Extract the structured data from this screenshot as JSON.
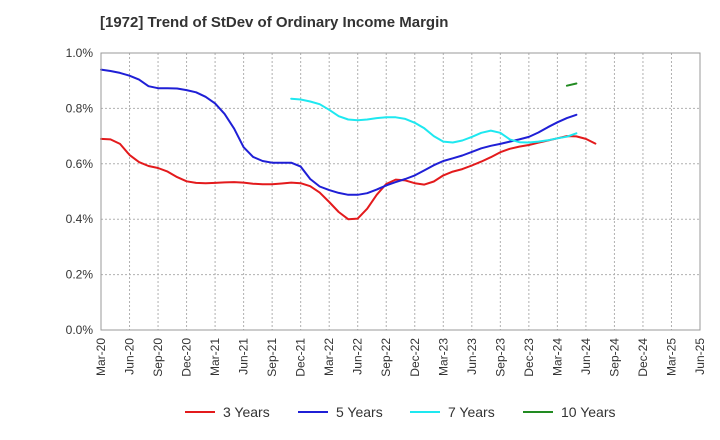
{
  "chart_data": {
    "type": "line",
    "title": "[1972]  Trend of StDev of Ordinary Income Margin",
    "xlabel": "",
    "ylabel": "",
    "ylim": [
      0,
      1.0
    ],
    "y_ticks": [
      "0.0%",
      "0.2%",
      "0.4%",
      "0.6%",
      "0.8%",
      "1.0%"
    ],
    "x_ticks": [
      "Mar-20",
      "Jun-20",
      "Sep-20",
      "Dec-20",
      "Mar-21",
      "Jun-21",
      "Sep-21",
      "Dec-21",
      "Mar-22",
      "Jun-22",
      "Sep-22",
      "Dec-22",
      "Mar-23",
      "Jun-23",
      "Sep-23",
      "Dec-23",
      "Mar-24",
      "Jun-24",
      "Sep-24",
      "Dec-24",
      "Mar-25",
      "Jun-25"
    ],
    "grid": true,
    "legend_position": "bottom",
    "series": [
      {
        "name": "3 Years",
        "color": "#e31a1c",
        "start_index": 0,
        "values": [
          0.69,
          0.688,
          0.672,
          0.632,
          0.606,
          0.592,
          0.585,
          0.572,
          0.552,
          0.537,
          0.531,
          0.53,
          0.531,
          0.533,
          0.534,
          0.532,
          0.528,
          0.526,
          0.526,
          0.529,
          0.532,
          0.53,
          0.519,
          0.496,
          0.462,
          0.426,
          0.4,
          0.402,
          0.438,
          0.488,
          0.527,
          0.543,
          0.54,
          0.53,
          0.525,
          0.536,
          0.558,
          0.572,
          0.581,
          0.594,
          0.608,
          0.624,
          0.642,
          0.654,
          0.662,
          0.668,
          0.676,
          0.684,
          0.692,
          0.7,
          0.699,
          0.69,
          0.673
        ]
      },
      {
        "name": "5 Years",
        "color": "#1f1fd6",
        "start_index": 0,
        "values": [
          0.94,
          0.935,
          0.928,
          0.918,
          0.904,
          0.88,
          0.873,
          0.873,
          0.872,
          0.866,
          0.858,
          0.842,
          0.818,
          0.78,
          0.727,
          0.66,
          0.625,
          0.61,
          0.604,
          0.604,
          0.604,
          0.59,
          0.545,
          0.518,
          0.505,
          0.495,
          0.488,
          0.488,
          0.494,
          0.507,
          0.522,
          0.534,
          0.545,
          0.558,
          0.576,
          0.595,
          0.61,
          0.62,
          0.63,
          0.643,
          0.656,
          0.665,
          0.672,
          0.68,
          0.688,
          0.697,
          0.713,
          0.732,
          0.75,
          0.765,
          0.777
        ]
      },
      {
        "name": "7 Years",
        "color": "#1ee8f0",
        "start_index": 20,
        "values": [
          0.835,
          0.832,
          0.825,
          0.815,
          0.795,
          0.772,
          0.76,
          0.757,
          0.76,
          0.765,
          0.768,
          0.768,
          0.762,
          0.748,
          0.728,
          0.7,
          0.68,
          0.677,
          0.684,
          0.697,
          0.712,
          0.72,
          0.712,
          0.688,
          0.678,
          0.677,
          0.68,
          0.685,
          0.692,
          0.698,
          0.71
        ]
      },
      {
        "name": "10 Years",
        "color": "#228b22",
        "start_index": 49,
        "values": [
          0.882,
          0.89
        ]
      }
    ]
  }
}
